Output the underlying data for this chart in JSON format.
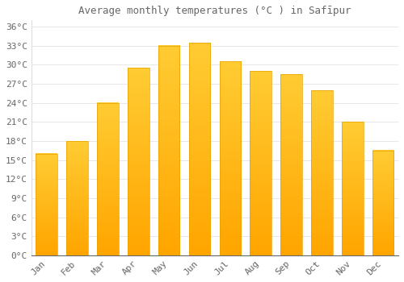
{
  "title": "Average monthly temperatures (°C ) in Safīpur",
  "months": [
    "Jan",
    "Feb",
    "Mar",
    "Apr",
    "May",
    "Jun",
    "Jul",
    "Aug",
    "Sep",
    "Oct",
    "Nov",
    "Dec"
  ],
  "values": [
    16,
    18,
    24,
    29.5,
    33,
    33.5,
    30.5,
    29,
    28.5,
    26,
    21,
    16.5
  ],
  "bar_color_top": "#FFCC33",
  "bar_color_bottom": "#FFA500",
  "bar_edge_color": "#E8A000",
  "background_color": "#FFFFFF",
  "grid_color": "#DDDDDD",
  "text_color": "#666666",
  "ylim": [
    0,
    37
  ],
  "yticks": [
    0,
    3,
    6,
    9,
    12,
    15,
    18,
    21,
    24,
    27,
    30,
    33,
    36
  ],
  "ytick_labels": [
    "0°C",
    "3°C",
    "6°C",
    "9°C",
    "12°C",
    "15°C",
    "18°C",
    "21°C",
    "24°C",
    "27°C",
    "30°C",
    "33°C",
    "36°C"
  ],
  "font_size": 8,
  "title_font_size": 9
}
